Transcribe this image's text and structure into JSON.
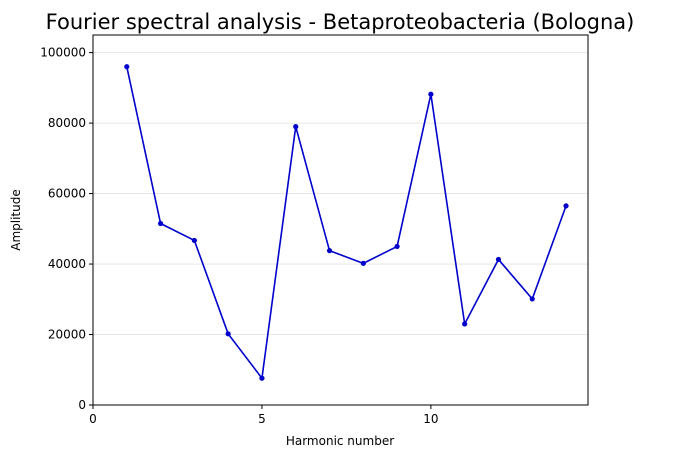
{
  "chart_data": {
    "type": "line",
    "title": "Fourier spectral analysis - Betaproteobacteria (Bologna)",
    "xlabel": "Harmonic number",
    "ylabel": "Amplitude",
    "xlim": [
      0,
      14.65
    ],
    "ylim": [
      0,
      105000
    ],
    "xticks": [
      0,
      5,
      10
    ],
    "xtick_labels": [
      "0",
      "5",
      "10"
    ],
    "yticks": [
      0,
      20000,
      40000,
      60000,
      80000,
      100000
    ],
    "ytick_labels": [
      "0",
      "20000",
      "40000",
      "60000",
      "80000",
      "100000"
    ],
    "grid": "horizontal",
    "series": [
      {
        "color": "#0000cc",
        "marker": "dot",
        "x": [
          1,
          2,
          3,
          4,
          5,
          6,
          7,
          8,
          9,
          10,
          11,
          12,
          13,
          14
        ],
        "y": [
          96000,
          51500,
          46700,
          20200,
          7600,
          79000,
          43800,
          40200,
          45000,
          88200,
          23000,
          41300,
          30100,
          56500
        ]
      }
    ]
  }
}
